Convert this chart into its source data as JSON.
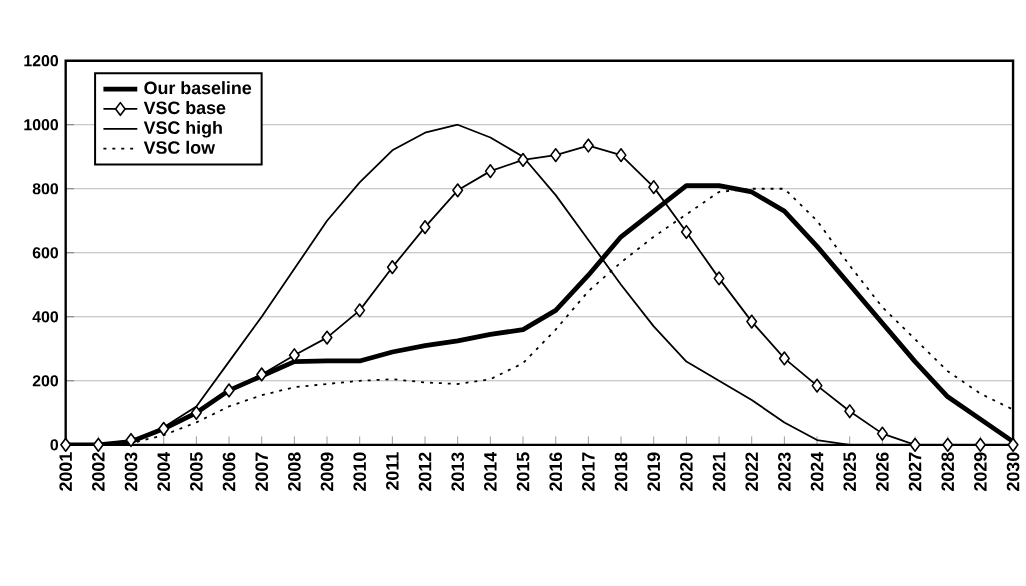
{
  "chart_data": {
    "type": "line",
    "categories": [
      "2001",
      "2002",
      "2003",
      "2004",
      "2005",
      "2006",
      "2007",
      "2008",
      "2009",
      "2010",
      "2011",
      "2012",
      "2013",
      "2014",
      "2015",
      "2016",
      "2017",
      "2018",
      "2019",
      "2020",
      "2021",
      "2022",
      "2023",
      "2024",
      "2025",
      "2026",
      "2027",
      "2028",
      "2029",
      "2030"
    ],
    "series": [
      {
        "name": "Our baseline",
        "color": "#000000",
        "line_style": "solid",
        "marker": "none",
        "values": [
          0,
          0,
          10,
          50,
          100,
          170,
          215,
          260,
          262,
          262,
          290,
          310,
          325,
          345,
          360,
          420,
          530,
          650,
          730,
          810,
          810,
          790,
          730,
          620,
          500,
          380,
          260,
          150,
          80,
          10
        ]
      },
      {
        "name": "VSC base",
        "color": "#000000",
        "line_style": "solid",
        "marker": "diamond",
        "values": [
          0,
          0,
          15,
          50,
          100,
          170,
          220,
          280,
          335,
          420,
          555,
          680,
          795,
          855,
          890,
          905,
          935,
          905,
          805,
          665,
          520,
          385,
          270,
          185,
          105,
          35,
          0,
          0,
          0,
          0
        ]
      },
      {
        "name": "VSC high",
        "color": "#000000",
        "line_style": "solid",
        "marker": "none",
        "values": [
          0,
          0,
          5,
          55,
          120,
          260,
          400,
          550,
          700,
          820,
          920,
          975,
          1000,
          960,
          900,
          780,
          640,
          500,
          370,
          260,
          200,
          140,
          70,
          15,
          0,
          null,
          null,
          null,
          null,
          null
        ]
      },
      {
        "name": "VSC low",
        "color": "#000000",
        "line_style": "dotted",
        "marker": "none",
        "values": [
          0,
          0,
          5,
          30,
          70,
          120,
          155,
          180,
          190,
          200,
          205,
          195,
          190,
          205,
          255,
          360,
          480,
          570,
          650,
          720,
          790,
          800,
          800,
          700,
          560,
          430,
          330,
          230,
          160,
          110
        ]
      }
    ],
    "ylim": [
      0,
      1200
    ],
    "yticks": [
      0,
      200,
      400,
      600,
      800,
      1000,
      1200
    ],
    "grid": "y",
    "legend": "top left"
  }
}
